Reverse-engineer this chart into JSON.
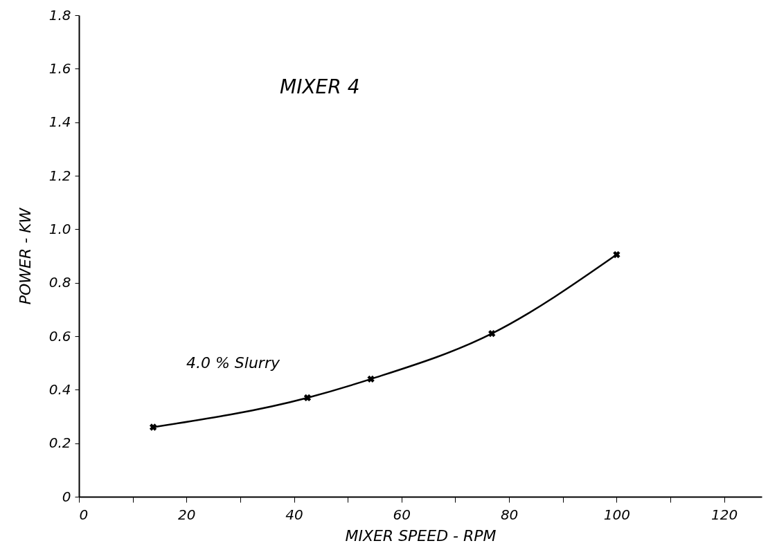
{
  "chart_data": {
    "type": "line",
    "xlabel": "MIXER SPEED - RPM",
    "ylabel": "POWER - KW",
    "annotations": [
      "MIXER 4"
    ],
    "series": [
      {
        "name": "4.0 % Slurry",
        "color": "#000000",
        "x": [
          13.8,
          42.5,
          54.3,
          76.8,
          100
        ],
        "values": [
          0.26,
          0.37,
          0.44,
          0.61,
          0.905
        ]
      }
    ],
    "marker": "cross",
    "line_style": "solid",
    "xlim": [
      0,
      127
    ],
    "xticks": [
      0,
      {
        "value": 10,
        "label": null
      },
      20,
      {
        "value": 30,
        "label": null
      },
      40,
      {
        "value": 50,
        "label": null
      },
      60,
      {
        "value": 70,
        "label": null
      },
      80,
      {
        "value": 90,
        "label": null
      },
      100,
      {
        "value": 110,
        "label": null
      },
      120
    ],
    "ylim": [
      0,
      1.8
    ],
    "yticks": [
      0,
      0.2,
      0.4,
      0.6,
      0.8,
      {
        "value": 1,
        "label": "1.0"
      },
      1.2,
      1.4,
      1.6,
      1.8
    ]
  }
}
